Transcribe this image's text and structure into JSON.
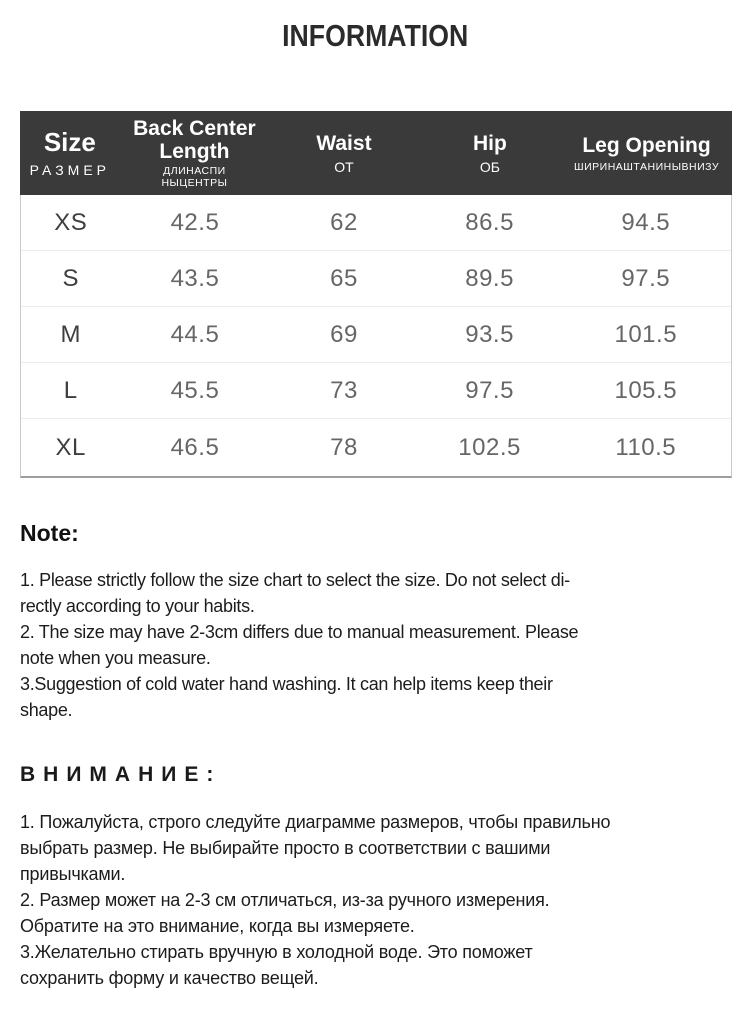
{
  "page": {
    "title": "INFORMATION"
  },
  "table": {
    "columns": [
      {
        "en": "Size",
        "ru": "РАЗМЕР"
      },
      {
        "en": "Back Center\nLength",
        "ru": "ДЛИНАСПИ\nНЫЦЕНТРЫ"
      },
      {
        "en": "Waist",
        "ru": "ОТ"
      },
      {
        "en": "Hip",
        "ru": "ОБ"
      },
      {
        "en": "Leg Opening",
        "ru": "ШИРИНАШТАНИНЫВНИЗУ"
      }
    ],
    "rows": [
      {
        "size": "XS",
        "values": [
          "42.5",
          "62",
          "86.5",
          "94.5"
        ]
      },
      {
        "size": "S",
        "values": [
          "43.5",
          "65",
          "89.5",
          "97.5"
        ]
      },
      {
        "size": "M",
        "values": [
          "44.5",
          "69",
          "93.5",
          "101.5"
        ]
      },
      {
        "size": "L",
        "values": [
          "45.5",
          "73",
          "97.5",
          "105.5"
        ]
      },
      {
        "size": "XL",
        "values": [
          "46.5",
          "78",
          "102.5",
          "110.5"
        ]
      }
    ]
  },
  "note": {
    "heading": "Note:",
    "body": "1. Please strictly follow the size chart  to select the size. Do not select di-\nrectly according to your habits.\n2. The size may have 2-3cm differs due to manual measurement. Please\nnote when you measure.\n3.Suggestion of cold water hand washing. It can help items keep their\nshape."
  },
  "attention": {
    "heading": "ВНИМАНИЕ:",
    "body": "1. Пожалуйста, строго следуйте диаграмме размеров, чтобы правильно\nвыбрать размер. Не выбирайте просто в соответствии с вашими\nпривычками.\n2. Размер может на 2-3 см отличаться, из-за ручного измерения.\nОбратите на это внимание, когда вы измеряете.\n3.Желательно стирать вручную в холодной воде. Это поможет\nсохранить форму и качество вещей."
  },
  "colors": {
    "header_bg": "#3a3a3a",
    "header_text": "#ffffff",
    "value_text": "#666666",
    "size_text": "#3e3e3e",
    "row_divider": "#ebebeb",
    "table_border": "#c9c9c9",
    "table_bottom_border": "#9e9e9e"
  }
}
